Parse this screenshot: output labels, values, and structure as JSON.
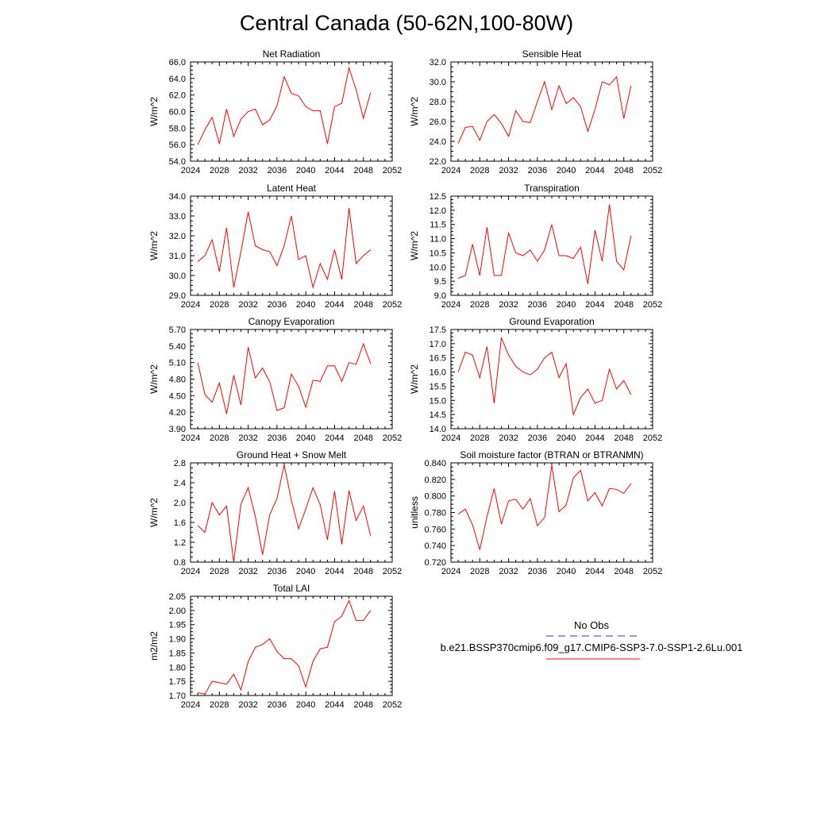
{
  "title": "Central Canada (50-62N,100-80W)",
  "colors": {
    "series": "#ff0000",
    "obs": "#3333aa",
    "axis": "#000000"
  },
  "legend": {
    "entries": [
      {
        "label": "No Obs",
        "style": "dashed",
        "color": "#3333aa"
      },
      {
        "label": "b.e21.BSSP370cmip6.f09_g17.CMIP6-SSP3-7.0-SSP1-2.6Lu.001",
        "style": "solid",
        "color": "#ff0000"
      }
    ]
  },
  "chart_data": [
    {
      "type": "line",
      "title": "Net Radiation",
      "ylabel": "W/m^2",
      "xlim": [
        2024,
        2052
      ],
      "ylim": [
        54.0,
        66.0
      ],
      "xticks": [
        "2024",
        "2028",
        "2032",
        "2036",
        "2040",
        "2044",
        "2048",
        "2052"
      ],
      "yticks": [
        "54.0",
        "56.0",
        "58.0",
        "60.0",
        "62.0",
        "64.0",
        "66.0"
      ],
      "x": [
        2025,
        2026,
        2027,
        2028,
        2029,
        2030,
        2031,
        2032,
        2033,
        2034,
        2035,
        2036,
        2037,
        2038,
        2039,
        2040,
        2041,
        2042,
        2043,
        2044,
        2045,
        2046,
        2047,
        2048,
        2049
      ],
      "values": [
        56.0,
        57.8,
        59.3,
        56.1,
        60.3,
        57.0,
        59.1,
        60.0,
        60.3,
        58.4,
        59.0,
        60.7,
        64.2,
        62.2,
        61.9,
        60.6,
        60.1,
        60.1,
        56.1,
        60.6,
        61.0,
        65.3,
        62.6,
        59.2,
        62.3
      ]
    },
    {
      "type": "line",
      "title": "Sensible Heat",
      "ylabel": "W/m^2",
      "xlim": [
        2024,
        2052
      ],
      "ylim": [
        22.0,
        32.0
      ],
      "xticks": [
        "2024",
        "2028",
        "2032",
        "2036",
        "2040",
        "2044",
        "2048",
        "2052"
      ],
      "yticks": [
        "22.0",
        "24.0",
        "26.0",
        "28.0",
        "30.0",
        "32.0"
      ],
      "x": [
        2025,
        2026,
        2027,
        2028,
        2029,
        2030,
        2031,
        2032,
        2033,
        2034,
        2035,
        2036,
        2037,
        2038,
        2039,
        2040,
        2041,
        2042,
        2043,
        2044,
        2045,
        2046,
        2047,
        2048,
        2049
      ],
      "values": [
        23.8,
        25.4,
        25.5,
        24.1,
        26.0,
        26.7,
        25.8,
        24.5,
        27.1,
        26.0,
        25.9,
        28.0,
        30.0,
        27.2,
        29.6,
        27.8,
        28.4,
        27.5,
        25.0,
        27.2,
        30.0,
        29.7,
        30.5,
        26.3,
        29.6
      ]
    },
    {
      "type": "line",
      "title": "Latent Heat",
      "ylabel": "W/m^2",
      "xlim": [
        2024,
        2052
      ],
      "ylim": [
        29.0,
        34.0
      ],
      "xticks": [
        "2024",
        "2028",
        "2032",
        "2036",
        "2040",
        "2044",
        "2048",
        "2052"
      ],
      "yticks": [
        "29.0",
        "30.0",
        "31.0",
        "32.0",
        "33.0",
        "34.0"
      ],
      "x": [
        2025,
        2026,
        2027,
        2028,
        2029,
        2030,
        2031,
        2032,
        2033,
        2034,
        2035,
        2036,
        2037,
        2038,
        2039,
        2040,
        2041,
        2042,
        2043,
        2044,
        2045,
        2046,
        2047,
        2048,
        2049
      ],
      "values": [
        30.7,
        31.0,
        31.8,
        30.2,
        32.4,
        29.4,
        31.2,
        33.2,
        31.5,
        31.3,
        31.2,
        30.5,
        31.5,
        33.0,
        30.8,
        31.0,
        29.4,
        30.6,
        29.8,
        31.3,
        29.8,
        33.4,
        30.6,
        31.0,
        31.3
      ]
    },
    {
      "type": "line",
      "title": "Transpiration",
      "ylabel": "W/m^2",
      "xlim": [
        2024,
        2052
      ],
      "ylim": [
        9.0,
        12.5
      ],
      "xticks": [
        "2024",
        "2028",
        "2032",
        "2036",
        "2040",
        "2044",
        "2048",
        "2052"
      ],
      "yticks": [
        "9.0",
        "9.5",
        "10.0",
        "10.5",
        "11.0",
        "11.5",
        "12.0",
        "12.5"
      ],
      "x": [
        2025,
        2026,
        2027,
        2028,
        2029,
        2030,
        2031,
        2032,
        2033,
        2034,
        2035,
        2036,
        2037,
        2038,
        2039,
        2040,
        2041,
        2042,
        2043,
        2044,
        2045,
        2046,
        2047,
        2048,
        2049
      ],
      "values": [
        9.6,
        9.7,
        10.8,
        9.7,
        11.4,
        9.7,
        9.7,
        11.2,
        10.5,
        10.4,
        10.6,
        10.2,
        10.6,
        11.5,
        10.4,
        10.4,
        10.3,
        10.7,
        9.4,
        11.3,
        10.2,
        12.2,
        10.2,
        9.9,
        11.1
      ]
    },
    {
      "type": "line",
      "title": "Canopy Evaporation",
      "ylabel": "W/m^2",
      "xlim": [
        2024,
        2052
      ],
      "ylim": [
        3.9,
        5.7
      ],
      "xticks": [
        "2024",
        "2028",
        "2032",
        "2036",
        "2040",
        "2044",
        "2048",
        "2052"
      ],
      "yticks": [
        "3.90",
        "4.20",
        "4.50",
        "4.80",
        "5.10",
        "5.40",
        "5.70"
      ],
      "x": [
        2025,
        2026,
        2027,
        2028,
        2029,
        2030,
        2031,
        2032,
        2033,
        2034,
        2035,
        2036,
        2037,
        2038,
        2039,
        2040,
        2041,
        2042,
        2043,
        2044,
        2045,
        2046,
        2047,
        2048,
        2049
      ],
      "values": [
        5.1,
        4.52,
        4.38,
        4.73,
        4.17,
        4.87,
        4.33,
        5.38,
        4.82,
        5.0,
        4.75,
        4.23,
        4.28,
        4.89,
        4.67,
        4.29,
        4.78,
        4.76,
        5.04,
        5.04,
        4.76,
        5.1,
        5.07,
        5.44,
        5.08
      ]
    },
    {
      "type": "line",
      "title": "Ground Evaporation",
      "ylabel": "W/m^2",
      "xlim": [
        2024,
        2052
      ],
      "ylim": [
        14.0,
        17.5
      ],
      "xticks": [
        "2024",
        "2028",
        "2032",
        "2036",
        "2040",
        "2044",
        "2048",
        "2052"
      ],
      "yticks": [
        "14.0",
        "14.5",
        "15.0",
        "15.5",
        "16.0",
        "16.5",
        "17.0",
        "17.5"
      ],
      "x": [
        2025,
        2026,
        2027,
        2028,
        2029,
        2030,
        2031,
        2032,
        2033,
        2034,
        2035,
        2036,
        2037,
        2038,
        2039,
        2040,
        2041,
        2042,
        2043,
        2044,
        2045,
        2046,
        2047,
        2048,
        2049
      ],
      "values": [
        16.0,
        16.7,
        16.6,
        15.8,
        16.9,
        14.9,
        17.2,
        16.6,
        16.2,
        16.0,
        15.9,
        16.1,
        16.5,
        16.7,
        15.8,
        16.3,
        14.5,
        15.1,
        15.4,
        14.9,
        15.0,
        16.1,
        15.4,
        15.7,
        15.2
      ]
    },
    {
      "type": "line",
      "title": "Ground Heat + Snow Melt",
      "ylabel": "W/m^2",
      "xlim": [
        2024,
        2052
      ],
      "ylim": [
        0.8,
        2.8
      ],
      "xticks": [
        "2024",
        "2028",
        "2032",
        "2036",
        "2040",
        "2044",
        "2048",
        "2052"
      ],
      "yticks": [
        "0.8",
        "1.2",
        "1.6",
        "2.0",
        "2.4",
        "2.8"
      ],
      "x": [
        2025,
        2026,
        2027,
        2028,
        2029,
        2030,
        2031,
        2032,
        2033,
        2034,
        2035,
        2036,
        2037,
        2038,
        2039,
        2040,
        2041,
        2042,
        2043,
        2044,
        2045,
        2046,
        2047,
        2048,
        2049
      ],
      "values": [
        1.54,
        1.4,
        2.0,
        1.75,
        1.93,
        0.8,
        1.97,
        2.3,
        1.72,
        0.95,
        1.76,
        2.08,
        2.76,
        2.05,
        1.47,
        1.87,
        2.3,
        1.96,
        1.25,
        2.23,
        1.16,
        2.24,
        1.64,
        1.93,
        1.33
      ]
    },
    {
      "type": "line",
      "title": "Soil moisture factor (BTRAN or BTRANMN)",
      "ylabel": "unitless",
      "xlim": [
        2024,
        2052
      ],
      "ylim": [
        0.72,
        0.84
      ],
      "xticks": [
        "2024",
        "2028",
        "2032",
        "2036",
        "2040",
        "2044",
        "2048",
        "2052"
      ],
      "yticks": [
        "0.720",
        "0.740",
        "0.760",
        "0.780",
        "0.800",
        "0.820",
        "0.840"
      ],
      "x": [
        2025,
        2026,
        2027,
        2028,
        2029,
        2030,
        2031,
        2032,
        2033,
        2034,
        2035,
        2036,
        2037,
        2038,
        2039,
        2040,
        2041,
        2042,
        2043,
        2044,
        2045,
        2046,
        2047,
        2048,
        2049
      ],
      "values": [
        0.778,
        0.784,
        0.765,
        0.735,
        0.775,
        0.809,
        0.766,
        0.794,
        0.796,
        0.784,
        0.797,
        0.764,
        0.774,
        0.837,
        0.781,
        0.789,
        0.822,
        0.831,
        0.794,
        0.804,
        0.788,
        0.809,
        0.808,
        0.803,
        0.815
      ]
    },
    {
      "type": "line",
      "title": "Total LAI",
      "ylabel": "m2/m2",
      "xlim": [
        2024,
        2052
      ],
      "ylim": [
        1.7,
        2.05
      ],
      "xticks": [
        "2024",
        "2028",
        "2032",
        "2036",
        "2040",
        "2044",
        "2048",
        "2052"
      ],
      "yticks": [
        "1.70",
        "1.75",
        "1.80",
        "1.85",
        "1.90",
        "1.95",
        "2.00",
        "2.05"
      ],
      "x": [
        2025,
        2026,
        2027,
        2028,
        2029,
        2030,
        2031,
        2032,
        2033,
        2034,
        2035,
        2036,
        2037,
        2038,
        2039,
        2040,
        2041,
        2042,
        2043,
        2044,
        2045,
        2046,
        2047,
        2048,
        2049
      ],
      "values": [
        1.71,
        1.705,
        1.75,
        1.745,
        1.74,
        1.775,
        1.72,
        1.82,
        1.87,
        1.88,
        1.9,
        1.855,
        1.83,
        1.83,
        1.805,
        1.73,
        1.82,
        1.865,
        1.87,
        1.96,
        1.98,
        2.035,
        1.965,
        1.965,
        2.0
      ]
    }
  ]
}
